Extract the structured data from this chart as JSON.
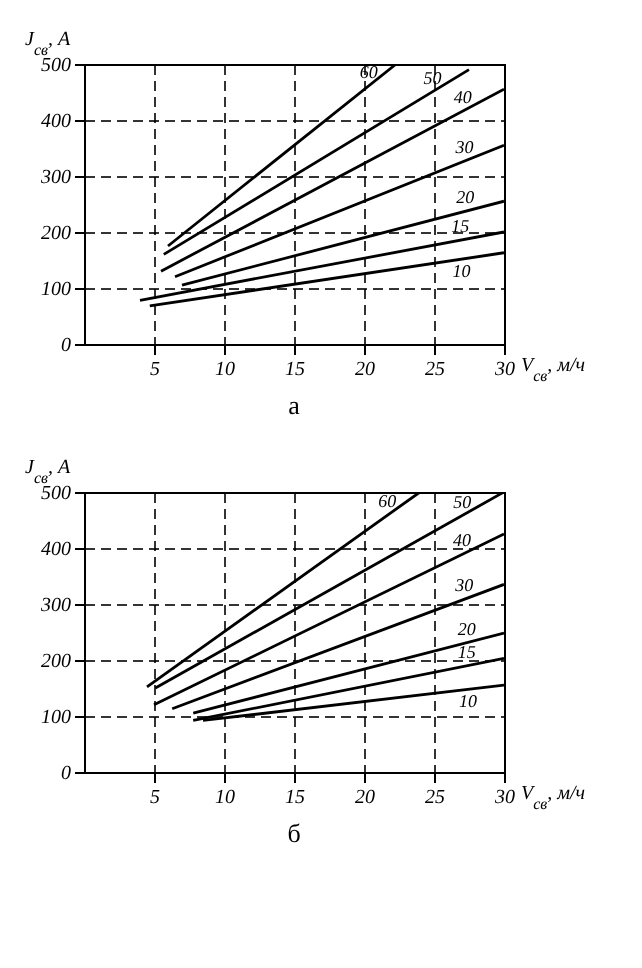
{
  "chart_data": [
    {
      "type": "line",
      "title": "а",
      "xlabel": "V$_{св}$, м/ч",
      "ylabel": "J$_{св}$, A",
      "xlim": [
        0,
        30
      ],
      "xticks": [
        5,
        10,
        15,
        20,
        25,
        30
      ],
      "ylim": [
        0,
        500
      ],
      "yticks": [
        0,
        100,
        200,
        300,
        400,
        500
      ],
      "grid": true,
      "line_style": "solid",
      "marker": "none",
      "series": [
        {
          "name": "60",
          "color": "#000000",
          "x": [
            6,
            22.3
          ],
          "values": [
            175,
            500
          ]
        },
        {
          "name": "50",
          "color": "#000000",
          "x": [
            5.7,
            27.5
          ],
          "values": [
            160,
            490
          ]
        },
        {
          "name": "40",
          "color": "#000000",
          "x": [
            5.5,
            30
          ],
          "values": [
            130,
            455
          ]
        },
        {
          "name": "30",
          "color": "#000000",
          "x": [
            6.5,
            30
          ],
          "values": [
            120,
            355
          ]
        },
        {
          "name": "20",
          "color": "#000000",
          "x": [
            7,
            30
          ],
          "values": [
            105,
            255
          ]
        },
        {
          "name": "15",
          "color": "#000000",
          "x": [
            4,
            30
          ],
          "values": [
            78,
            200
          ]
        },
        {
          "name": "10",
          "color": "#000000",
          "x": [
            4.7,
            30
          ],
          "values": [
            68,
            163
          ]
        }
      ]
    },
    {
      "type": "line",
      "title": "б",
      "xlabel": "V$_{св}$, м/ч",
      "ylabel": "J$_{св}$, A",
      "xlim": [
        0,
        30
      ],
      "xticks": [
        5,
        10,
        15,
        20,
        25,
        30
      ],
      "ylim": [
        0,
        500
      ],
      "yticks": [
        0,
        100,
        200,
        300,
        400,
        500
      ],
      "grid": true,
      "line_style": "solid",
      "marker": "none",
      "series": [
        {
          "name": "60",
          "color": "#000000",
          "x": [
            4.5,
            24
          ],
          "values": [
            152,
            500
          ]
        },
        {
          "name": "50",
          "color": "#000000",
          "x": [
            5.1,
            30
          ],
          "values": [
            150,
            500
          ]
        },
        {
          "name": "40",
          "color": "#000000",
          "x": [
            5,
            30
          ],
          "values": [
            120,
            425
          ]
        },
        {
          "name": "30",
          "color": "#000000",
          "x": [
            6.3,
            30
          ],
          "values": [
            113,
            335
          ]
        },
        {
          "name": "20",
          "color": "#000000",
          "x": [
            7.8,
            30
          ],
          "values": [
            105,
            248
          ]
        },
        {
          "name": "15",
          "color": "#000000",
          "x": [
            7.8,
            30
          ],
          "values": [
            92,
            203
          ]
        },
        {
          "name": "10",
          "color": "#000000",
          "x": [
            8.5,
            30
          ],
          "values": [
            92,
            155
          ]
        }
      ]
    }
  ]
}
